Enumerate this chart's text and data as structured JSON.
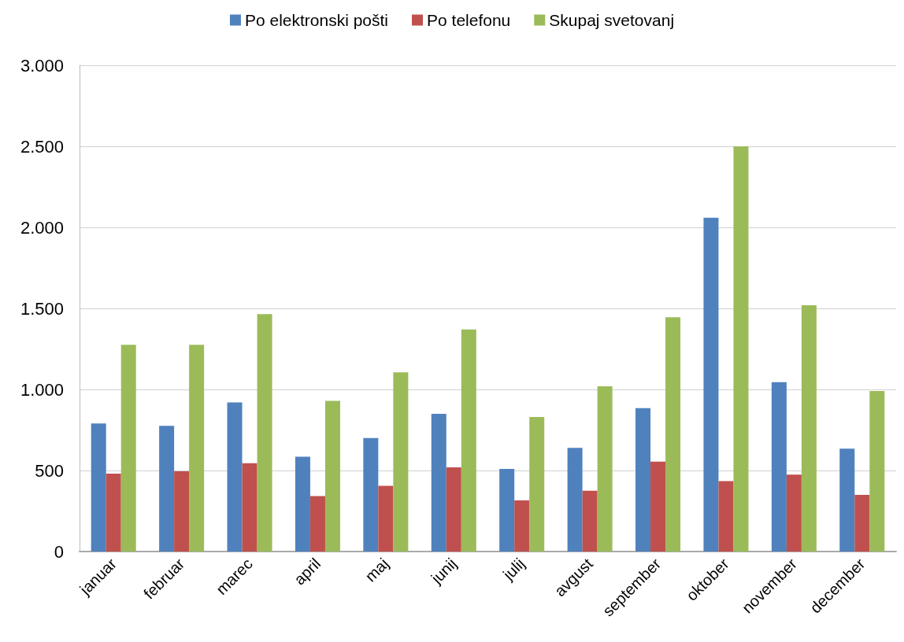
{
  "chart_data": {
    "type": "bar",
    "categories": [
      "januar",
      "februar",
      "marec",
      "april",
      "maj",
      "junij",
      "julij",
      "avgust",
      "september",
      "oktober",
      "november",
      "december"
    ],
    "series": [
      {
        "name": "Po elektronski pošti",
        "color": "#4f81bd",
        "values": [
          790,
          775,
          920,
          585,
          700,
          850,
          510,
          640,
          885,
          2060,
          1045,
          635
        ]
      },
      {
        "name": "Po telefonu",
        "color": "#c0504d",
        "values": [
          480,
          495,
          545,
          342,
          405,
          520,
          315,
          375,
          555,
          435,
          475,
          350
        ]
      },
      {
        "name": "Skupaj svetovanj",
        "color": "#9bbb59",
        "values": [
          1275,
          1275,
          1465,
          930,
          1105,
          1370,
          830,
          1020,
          1445,
          2500,
          1520,
          990
        ]
      }
    ],
    "ylim": [
      0,
      3000
    ],
    "yticks": [
      0,
      500,
      {
        "value": 1000,
        "label": "1.000"
      },
      {
        "value": 1500,
        "label": "1.500"
      },
      {
        "value": 2000,
        "label": "2.000"
      },
      {
        "value": 2500,
        "label": "2.500"
      },
      {
        "value": 3000,
        "label": "3.000"
      }
    ],
    "grid": "y",
    "legend": "top"
  }
}
